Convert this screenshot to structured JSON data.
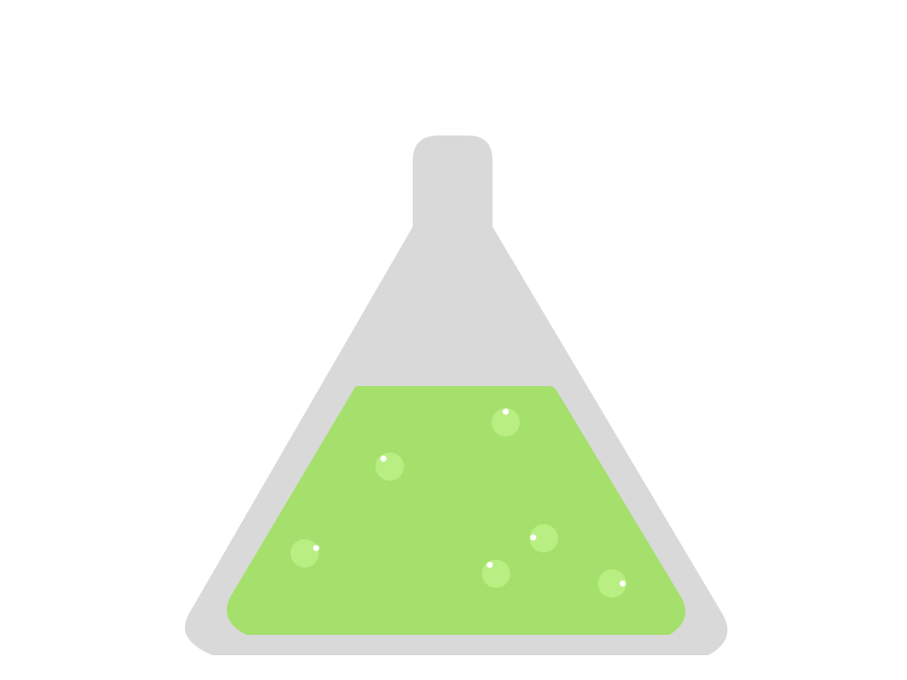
{
  "illustration": {
    "subject": "flask-icon",
    "colors": {
      "background": "#ffffff",
      "glass": "#d9d9d9",
      "liquid": "#a5e06d",
      "bubble": "#b9ee82",
      "highlight": "#ffffff"
    },
    "bubble_count": 6
  }
}
